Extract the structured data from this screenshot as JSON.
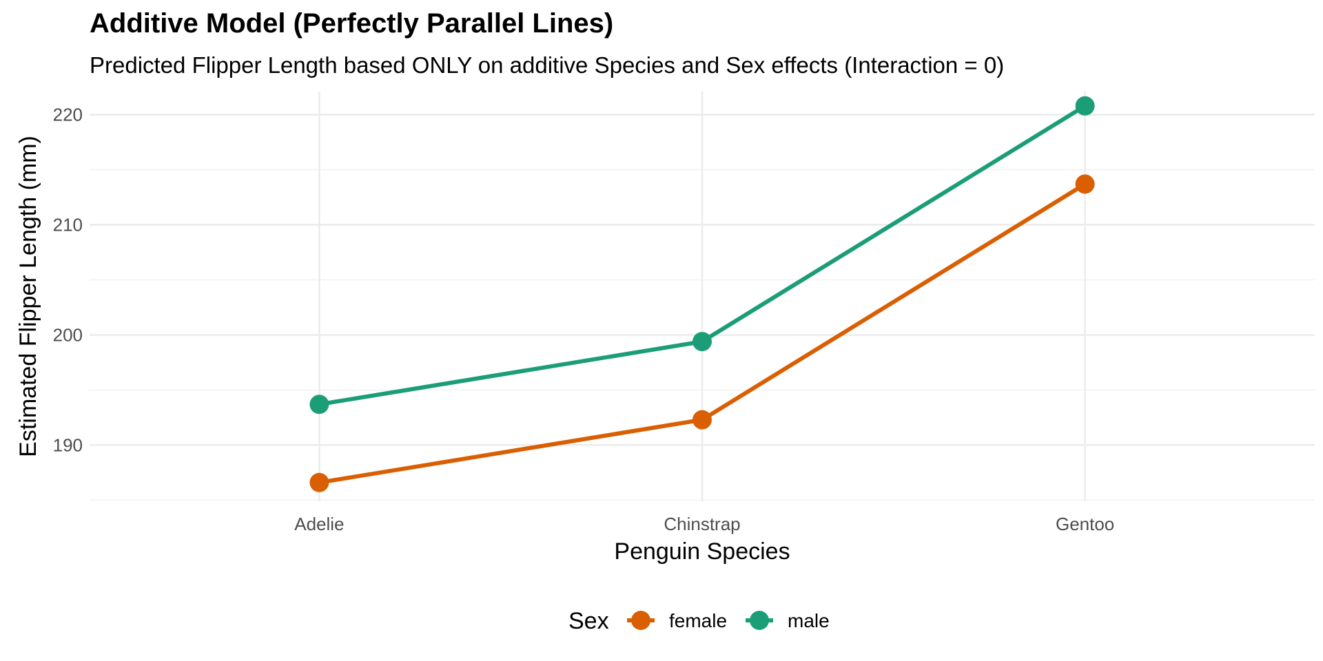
{
  "chart_data": {
    "type": "line",
    "title": "Additive Model (Perfectly Parallel Lines)",
    "subtitle": "Predicted Flipper Length based ONLY on additive Species and Sex effects (Interaction = 0)",
    "xlabel": "Penguin Species",
    "ylabel": "Estimated Flipper Length (mm)",
    "categories": [
      "Adelie",
      "Chinstrap",
      "Gentoo"
    ],
    "ylim": [
      184.9,
      222.1
    ],
    "yticks": [
      190,
      200,
      210,
      220
    ],
    "grid": true,
    "legend": {
      "title": "Sex",
      "position": "bottom"
    },
    "series": [
      {
        "name": "female",
        "color": "#D95F02",
        "values": [
          186.6,
          192.3,
          213.7
        ]
      },
      {
        "name": "male",
        "color": "#1B9E77",
        "values": [
          193.7,
          199.4,
          220.8
        ]
      }
    ]
  }
}
